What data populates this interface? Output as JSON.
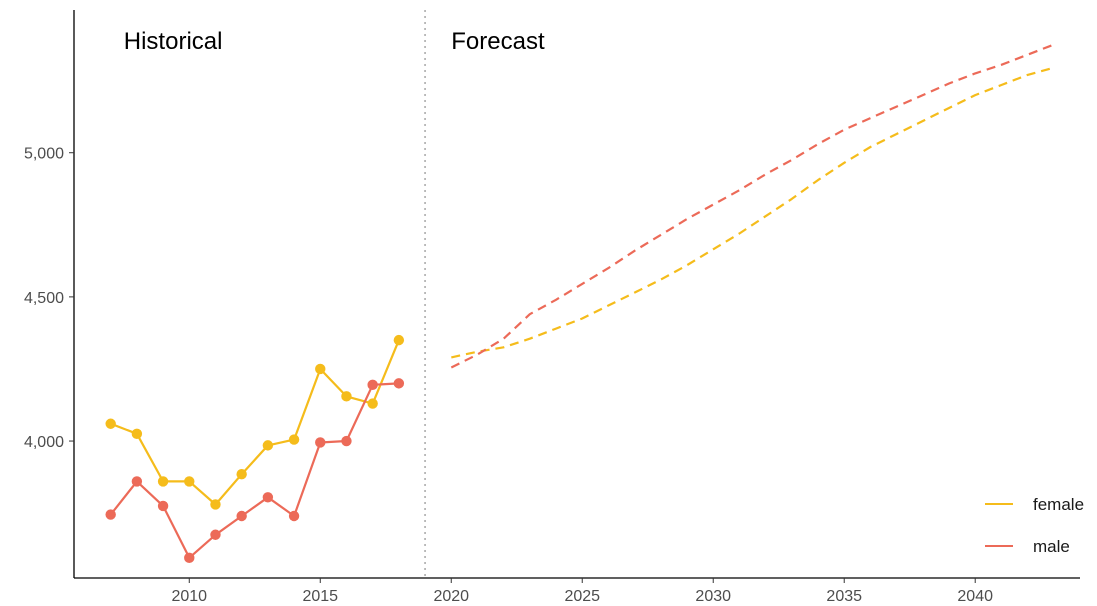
{
  "chart_data": {
    "type": "line",
    "title": "",
    "xlabel": "",
    "ylabel": "",
    "xlim": [
      2005.6,
      2044.0
    ],
    "ylim": [
      3525,
      5495
    ],
    "x_ticks": [
      2010,
      2015,
      2020,
      2025,
      2030,
      2035,
      2040
    ],
    "x_tick_labels": [
      "2010",
      "2015",
      "2020",
      "2025",
      "2030",
      "2035",
      "2040"
    ],
    "y_ticks": [
      4000,
      4500,
      5000
    ],
    "y_tick_labels": [
      "4,000",
      "4,500",
      "5,000"
    ],
    "grid": false,
    "legend_position": "bottom-right",
    "divider_x": 2019,
    "annotations": [
      {
        "text": "Historical",
        "x": 2007.5
      },
      {
        "text": "Forecast",
        "x": 2020
      }
    ],
    "series": [
      {
        "name": "female",
        "color": "#F5BC1B",
        "historical": {
          "x": [
            2007,
            2008,
            2009,
            2010,
            2011,
            2012,
            2013,
            2014,
            2015,
            2016,
            2017,
            2018
          ],
          "y": [
            4060,
            4025,
            3860,
            3860,
            3780,
            3885,
            3985,
            4005,
            4250,
            4155,
            4130,
            4350
          ]
        },
        "forecast": {
          "x": [
            2020,
            2021,
            2022,
            2023,
            2024,
            2025,
            2026,
            2027,
            2028,
            2029,
            2030,
            2031,
            2032,
            2033,
            2034,
            2035,
            2036,
            2037,
            2038,
            2039,
            2040,
            2041,
            2042,
            2043
          ],
          "y": [
            4290,
            4310,
            4325,
            4355,
            4390,
            4425,
            4470,
            4515,
            4560,
            4610,
            4665,
            4720,
            4780,
            4840,
            4905,
            4965,
            5020,
            5065,
            5110,
            5155,
            5200,
            5235,
            5270,
            5295
          ]
        }
      },
      {
        "name": "male",
        "color": "#EC6A58",
        "historical": {
          "x": [
            2007,
            2008,
            2009,
            2010,
            2011,
            2012,
            2013,
            2014,
            2015,
            2016,
            2017,
            2018
          ],
          "y": [
            3745,
            3860,
            3775,
            3595,
            3675,
            3740,
            3805,
            3740,
            3995,
            4000,
            4195,
            4200
          ]
        },
        "forecast": {
          "x": [
            2020,
            2021,
            2022,
            2023,
            2024,
            2025,
            2026,
            2027,
            2028,
            2029,
            2030,
            2031,
            2032,
            2033,
            2034,
            2035,
            2036,
            2037,
            2038,
            2039,
            2040,
            2041,
            2042,
            2043
          ],
          "y": [
            4255,
            4300,
            4355,
            4440,
            4490,
            4545,
            4600,
            4660,
            4715,
            4770,
            4820,
            4870,
            4925,
            4975,
            5030,
            5080,
            5120,
            5160,
            5200,
            5240,
            5275,
            5305,
            5340,
            5375
          ]
        }
      }
    ]
  }
}
